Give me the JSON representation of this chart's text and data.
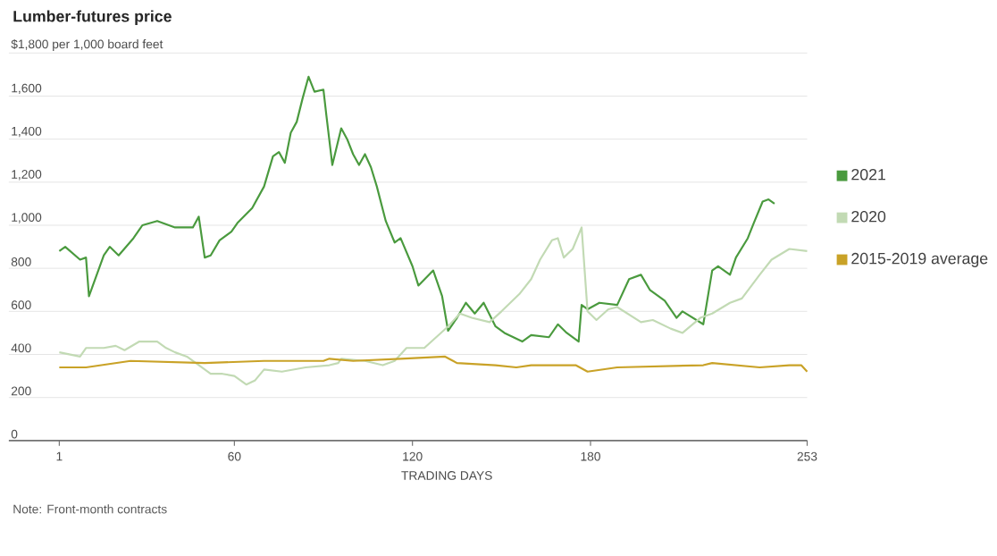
{
  "chart_data": {
    "type": "line",
    "title": "Lumber-futures price",
    "xlabel": "TRADING DAYS",
    "annotations": [
      "Note: Front-month contracts"
    ],
    "xlim": [
      -16,
      253
    ],
    "xticks": [
      1,
      60,
      120,
      180,
      253
    ],
    "ylim": [
      0,
      1800
    ],
    "yticks": [
      0,
      200,
      400,
      600,
      800,
      {
        "value": 1000,
        "label": "1,000"
      },
      {
        "value": 1200,
        "label": "1,200"
      },
      {
        "value": 1400,
        "label": "1,400"
      },
      {
        "value": 1600,
        "label": "1,600"
      },
      {
        "value": 1800,
        "label": "$1,800 per 1,000 board feet"
      }
    ],
    "grid": "y",
    "legend": "right",
    "marker": "none",
    "line_style": "solid",
    "series": [
      {
        "name": "2021",
        "color": "#4a9a3e",
        "x": [
          1,
          3,
          8,
          10,
          11,
          16,
          18,
          21,
          26,
          29,
          34,
          40,
          46,
          48,
          50,
          52,
          55,
          59,
          61,
          66,
          70,
          73,
          75,
          77,
          79,
          81,
          83,
          85,
          87,
          90,
          91,
          93,
          96,
          98,
          100,
          102,
          104,
          106,
          108,
          111,
          114,
          116,
          120,
          122,
          127,
          130,
          132,
          135,
          138,
          141,
          144,
          148,
          151,
          157,
          160,
          166,
          169,
          172,
          176,
          177,
          179,
          183,
          189,
          193,
          197,
          200,
          205,
          209,
          211,
          218,
          221,
          223,
          227,
          229,
          233,
          235,
          238,
          240,
          242
        ],
        "values": [
          880,
          900,
          840,
          850,
          670,
          860,
          900,
          860,
          940,
          1000,
          1020,
          990,
          990,
          1040,
          850,
          860,
          930,
          970,
          1010,
          1080,
          1180,
          1320,
          1340,
          1290,
          1430,
          1480,
          1590,
          1690,
          1620,
          1630,
          1510,
          1280,
          1450,
          1400,
          1330,
          1280,
          1330,
          1270,
          1180,
          1020,
          920,
          940,
          810,
          720,
          790,
          670,
          510,
          570,
          640,
          590,
          640,
          530,
          500,
          460,
          490,
          480,
          540,
          500,
          460,
          630,
          610,
          640,
          630,
          750,
          770,
          700,
          650,
          570,
          600,
          540,
          790,
          810,
          770,
          850,
          940,
          1010,
          1110,
          1120,
          1100
        ]
      },
      {
        "name": "2020",
        "color": "#c2dab4",
        "x": [
          1,
          8,
          10,
          16,
          20,
          23,
          28,
          34,
          37,
          40,
          44,
          49,
          52,
          56,
          60,
          64,
          67,
          70,
          76,
          84,
          92,
          95,
          96,
          104,
          110,
          114,
          118,
          124,
          128,
          132,
          136,
          140,
          146,
          150,
          156,
          160,
          163,
          167,
          169,
          171,
          174,
          177,
          179,
          182,
          186,
          189,
          197,
          201,
          207,
          211,
          217,
          221,
          227,
          231,
          237,
          241,
          247,
          253
        ],
        "values": [
          410,
          390,
          430,
          430,
          440,
          420,
          460,
          460,
          430,
          410,
          390,
          340,
          310,
          310,
          300,
          260,
          280,
          330,
          320,
          340,
          350,
          360,
          380,
          370,
          350,
          370,
          430,
          430,
          480,
          530,
          590,
          570,
          550,
          600,
          680,
          750,
          840,
          930,
          940,
          850,
          890,
          990,
          600,
          560,
          610,
          620,
          550,
          560,
          520,
          500,
          570,
          590,
          640,
          660,
          770,
          840,
          890,
          880
        ]
      },
      {
        "name": "2015-2019 average",
        "color": "#c9a227",
        "x": [
          1,
          10,
          25,
          50,
          70,
          90,
          92,
          100,
          116,
          131,
          135,
          148,
          155,
          160,
          175,
          179,
          189,
          218,
          221,
          237,
          247,
          251,
          253
        ],
        "values": [
          340,
          340,
          370,
          360,
          370,
          370,
          380,
          370,
          380,
          390,
          360,
          350,
          340,
          350,
          350,
          320,
          340,
          350,
          360,
          340,
          350,
          350,
          320
        ]
      }
    ]
  }
}
